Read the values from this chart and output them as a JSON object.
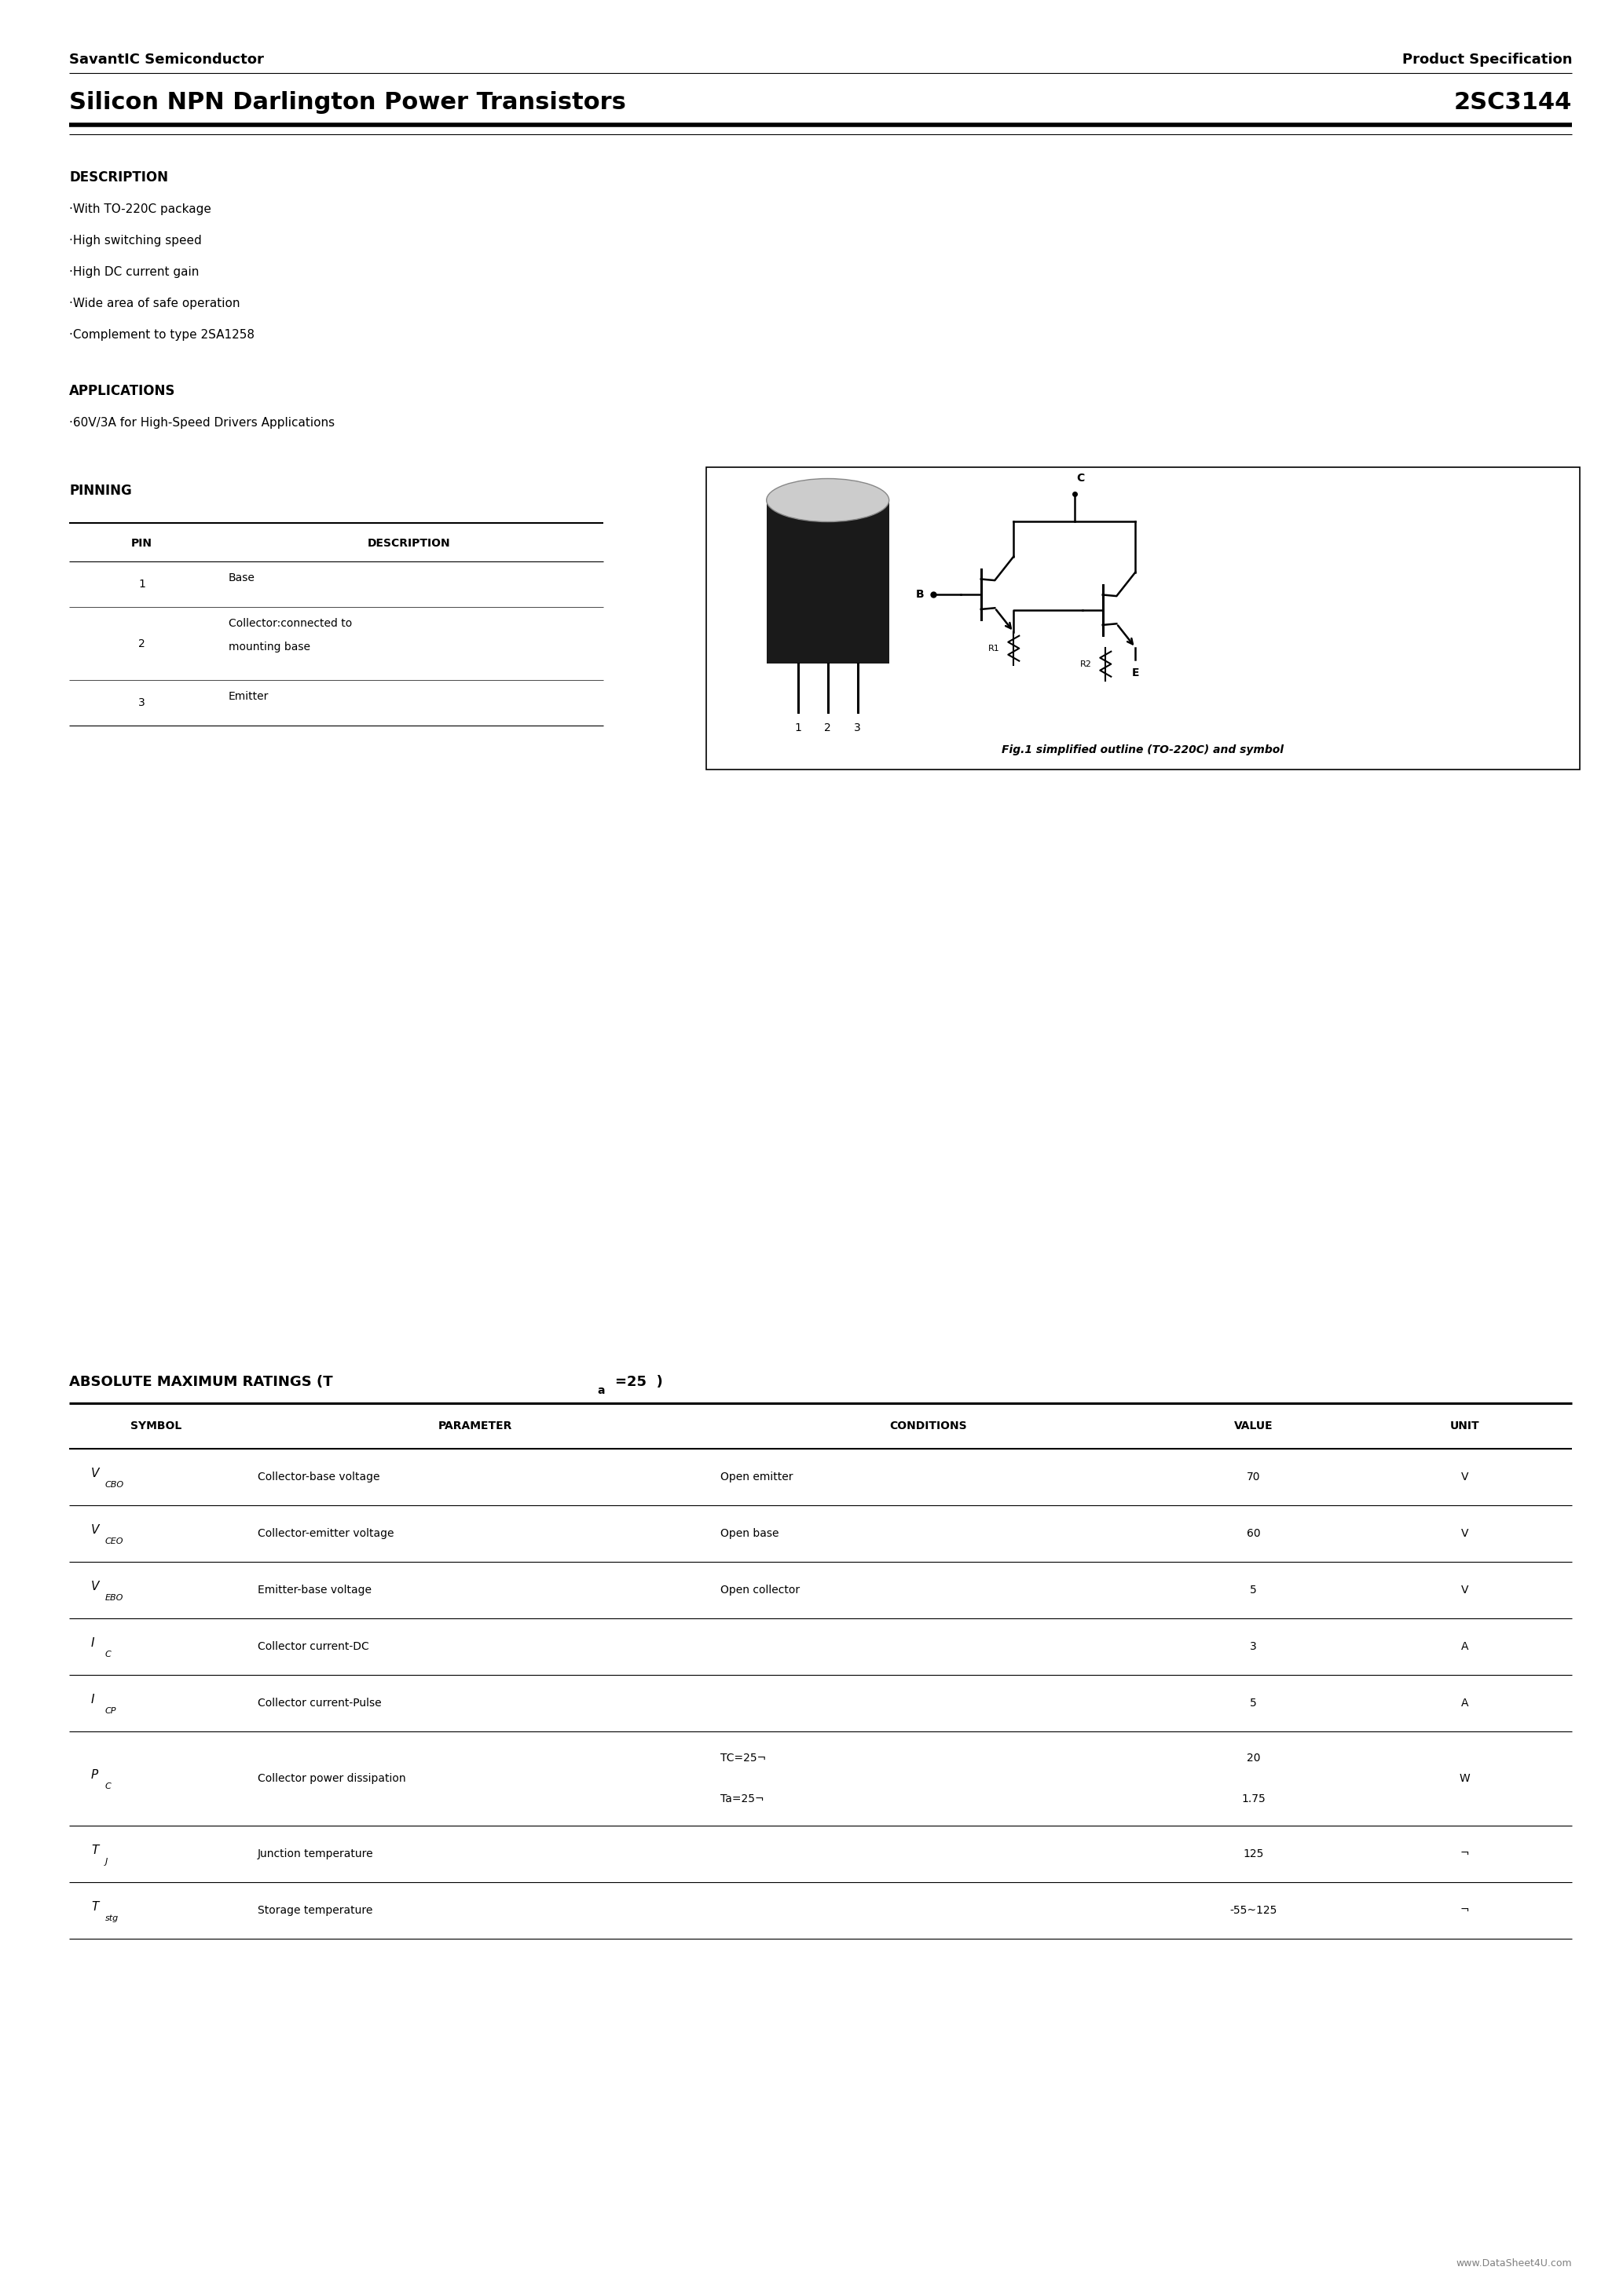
{
  "bg_color": "#ffffff",
  "page_width": 20.66,
  "page_height": 29.24,
  "header_left": "SavantIC Semiconductor",
  "header_right": "Product Specification",
  "title_left": "Silicon NPN Darlington Power Transistors",
  "title_right": "2SC3144",
  "desc_title": "DESCRIPTION",
  "desc_items": [
    "·With TO-220C package",
    "·High switching speed",
    "·High DC current gain",
    "·Wide area of safe operation",
    "·Complement to type 2SA1258"
  ],
  "app_title": "APPLICATIONS",
  "app_items": [
    "·60V/3A for High-Speed Drivers Applications"
  ],
  "pin_title": "PINNING",
  "pin_headers": [
    "PIN",
    "DESCRIPTION"
  ],
  "pin_rows": [
    [
      "1",
      "Base"
    ],
    [
      "2",
      "Collector:connected to\nmounting base"
    ],
    [
      "3",
      "Emitter"
    ]
  ],
  "fig_caption": "Fig.1 simplified outline (TO-220C) and symbol",
  "rat_rows": [
    {
      "sym": "V",
      "sub": "CBO",
      "param": "Collector-base voltage",
      "cond": "Open emitter",
      "val": "70",
      "unit": "V",
      "double": false
    },
    {
      "sym": "V",
      "sub": "CEO",
      "param": "Collector-emitter voltage",
      "cond": "Open base",
      "val": "60",
      "unit": "V",
      "double": false
    },
    {
      "sym": "V",
      "sub": "EBO",
      "param": "Emitter-base voltage",
      "cond": "Open collector",
      "val": "5",
      "unit": "V",
      "double": false
    },
    {
      "sym": "I",
      "sub": "C",
      "param": "Collector current-DC",
      "cond": "",
      "val": "3",
      "unit": "A",
      "double": false
    },
    {
      "sym": "I",
      "sub": "CP",
      "param": "Collector current-Pulse",
      "cond": "",
      "val": "5",
      "unit": "A",
      "double": false
    },
    {
      "sym": "P",
      "sub": "C",
      "param": "Collector power dissipation",
      "cond": "TC=25¬\nTa=25¬",
      "val": "20\n1.75",
      "unit": "W",
      "double": true
    },
    {
      "sym": "T",
      "sub": "J",
      "param": "Junction temperature",
      "cond": "",
      "val": "125",
      "unit": "¬",
      "double": false
    },
    {
      "sym": "T",
      "sub": "stg",
      "param": "Storage temperature",
      "cond": "",
      "val": "-55~125",
      "unit": "¬",
      "double": false
    }
  ],
  "website": "www.DataSheet4U.com"
}
